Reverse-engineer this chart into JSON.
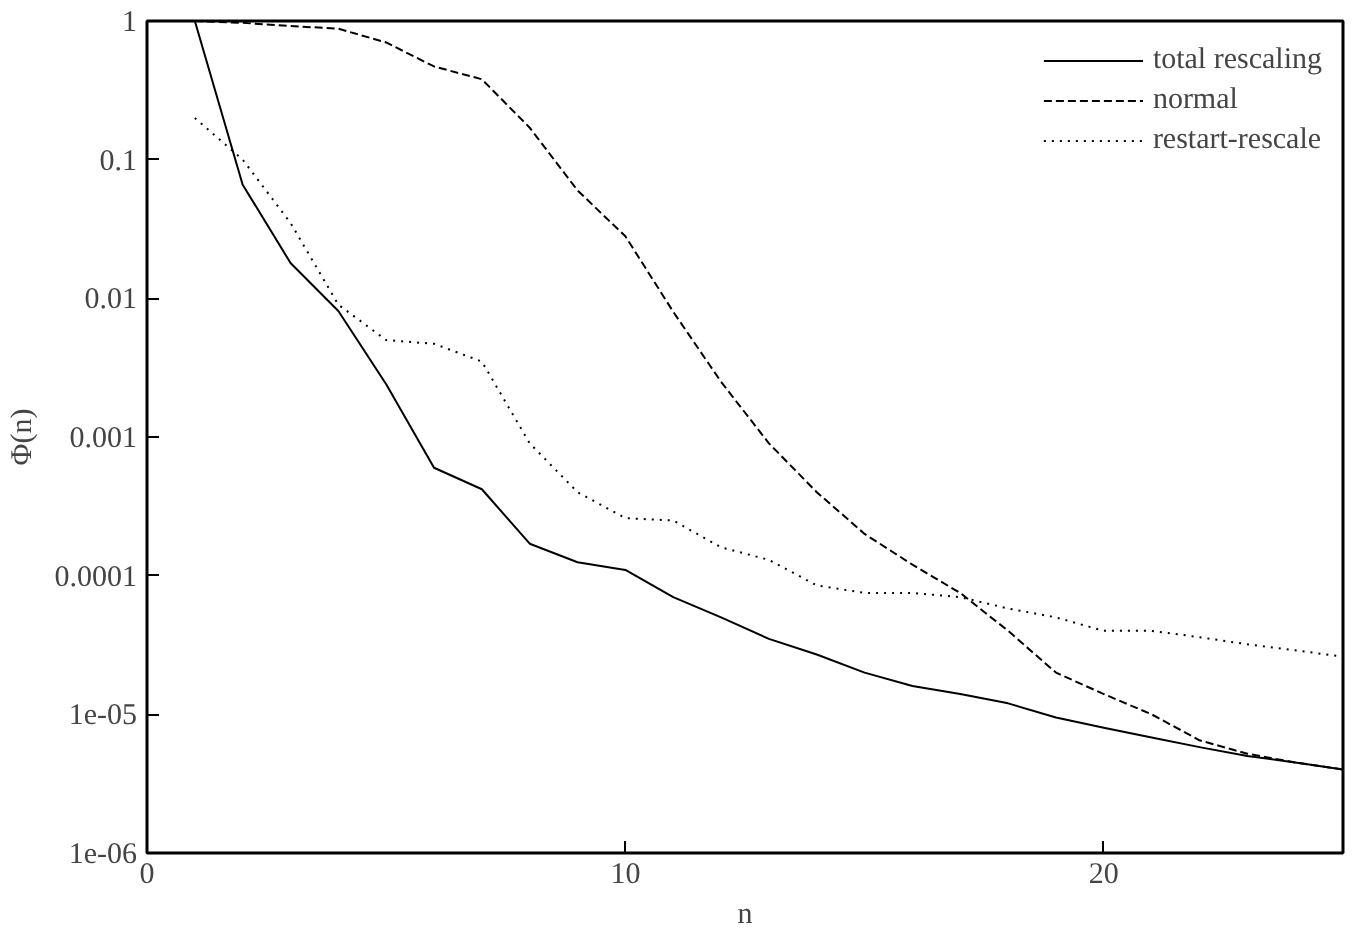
{
  "chart_data": {
    "type": "line",
    "xlabel": "n",
    "ylabel": "Φ(n)",
    "log": "y",
    "xlim": [
      0,
      25
    ],
    "ylim": [
      1e-06,
      1
    ],
    "xticks": [
      0,
      10,
      20
    ],
    "yticks": [
      {
        "value": 1e-06,
        "label": "1e-06"
      },
      {
        "value": 1e-05,
        "label": "1e-05"
      },
      {
        "value": 0.0001,
        "label": "0.0001"
      },
      {
        "value": 0.001,
        "label": "0.001"
      },
      {
        "value": 0.01,
        "label": "0.01"
      },
      {
        "value": 0.1,
        "label": "0.1"
      },
      {
        "value": 1,
        "label": "1"
      }
    ],
    "grid": false,
    "legend": "top right",
    "x": [
      1,
      2,
      3,
      4,
      5,
      6,
      7,
      8,
      9,
      10,
      11,
      12,
      13,
      14,
      15,
      16,
      17,
      18,
      19,
      20,
      21,
      22,
      23,
      24,
      25
    ],
    "series": [
      {
        "name": "total rescaling",
        "color": "#000000",
        "line_style": "solid",
        "values": [
          1,
          0.066,
          0.018,
          0.0081,
          0.0024,
          0.0006,
          0.00042,
          0.00017,
          0.000125,
          0.00011,
          7e-05,
          5e-05,
          3.5e-05,
          2.7e-05,
          2e-05,
          1.6e-05,
          1.4e-05,
          1.2e-05,
          9.5e-06,
          8e-06,
          6.8e-06,
          5.8e-06,
          5e-06,
          4.5e-06,
          4e-06
        ]
      },
      {
        "name": "normal",
        "color": "#000000",
        "line_style": "dashed",
        "values": [
          1,
          0.97,
          0.92,
          0.88,
          0.7,
          0.47,
          0.38,
          0.17,
          0.06,
          0.028,
          0.008,
          0.0025,
          0.0009,
          0.0004,
          0.0002,
          0.00012,
          7.5e-05,
          4e-05,
          2e-05,
          1.4e-05,
          1e-05,
          6.5e-06,
          5.2e-06,
          4.5e-06,
          4e-06
        ]
      },
      {
        "name": "restart-rescale",
        "color": "#000000",
        "line_style": "dotted",
        "values": [
          0.2,
          0.1,
          0.035,
          0.009,
          0.005,
          0.0047,
          0.0035,
          0.0009,
          0.0004,
          0.00026,
          0.00025,
          0.00016,
          0.00013,
          8.5e-05,
          7.5e-05,
          7.5e-05,
          7e-05,
          5.8e-05,
          5e-05,
          4e-05,
          4e-05,
          3.6e-05,
          3.2e-05,
          2.9e-05,
          2.6e-05
        ]
      }
    ]
  }
}
